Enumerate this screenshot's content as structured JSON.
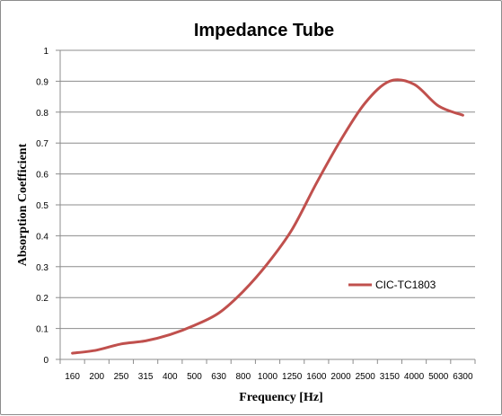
{
  "chart_data": {
    "type": "line",
    "title": "Impedance Tube",
    "xlabel": "Frequency [Hz]",
    "ylabel": "Absorption Coefficient",
    "categories": [
      "160",
      "200",
      "250",
      "315",
      "400",
      "500",
      "630",
      "800",
      "1000",
      "1250",
      "1600",
      "2000",
      "2500",
      "3150",
      "4000",
      "5000",
      "6300"
    ],
    "ylim": [
      0,
      1
    ],
    "yticks": [
      "0",
      "0.1",
      "0.2",
      "0.3",
      "0.4",
      "0.5",
      "0.6",
      "0.7",
      "0.8",
      "0.9",
      "1"
    ],
    "grid": true,
    "legend_position": "right",
    "series": [
      {
        "name": "CIC-TC1803",
        "color": "#c0504d",
        "values": [
          0.02,
          0.03,
          0.05,
          0.06,
          0.08,
          0.11,
          0.15,
          0.22,
          0.31,
          0.42,
          0.57,
          0.71,
          0.83,
          0.9,
          0.89,
          0.82,
          0.79
        ]
      }
    ]
  }
}
